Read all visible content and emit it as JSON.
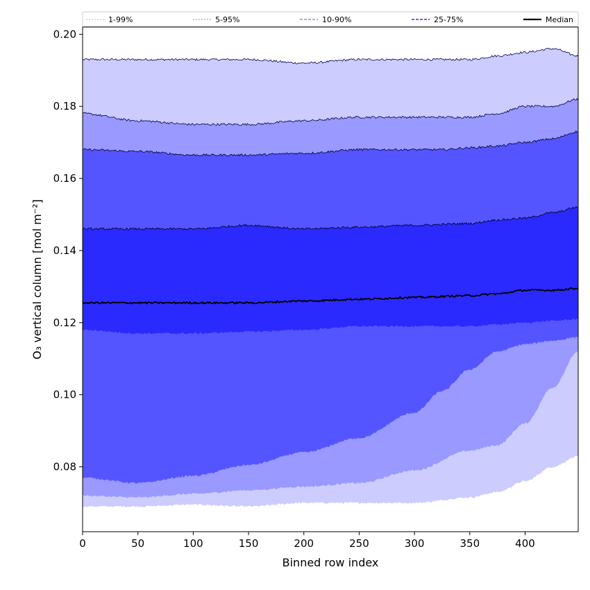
{
  "chart_data": {
    "type": "area",
    "xlabel": "Binned row index",
    "ylabel": "O₃ vertical column [mol m⁻²]",
    "xlim": [
      0,
      448
    ],
    "ylim": [
      0.062,
      0.202
    ],
    "x_ticks": [
      0,
      50,
      100,
      150,
      200,
      250,
      300,
      350,
      400
    ],
    "y_ticks": [
      0.08,
      0.1,
      0.12,
      0.14,
      0.16,
      0.18,
      0.2
    ],
    "legend_position": "top",
    "bands": [
      {
        "name": "1-99%",
        "color": "#ccccff",
        "edge": "#000055",
        "x": [
          0,
          50,
          100,
          150,
          200,
          250,
          300,
          350,
          375,
          400,
          425,
          448
        ],
        "upper": [
          0.193,
          0.193,
          0.193,
          0.193,
          0.192,
          0.193,
          0.193,
          0.193,
          0.194,
          0.195,
          0.196,
          0.194
        ],
        "lower": [
          0.069,
          0.069,
          0.0695,
          0.069,
          0.07,
          0.07,
          0.07,
          0.0715,
          0.073,
          0.076,
          0.08,
          0.083
        ]
      },
      {
        "name": "5-95%",
        "color": "#9999ff",
        "edge": "#000044",
        "x": [
          0,
          50,
          100,
          150,
          200,
          250,
          300,
          350,
          375,
          400,
          425,
          448
        ],
        "upper": [
          0.178,
          0.176,
          0.175,
          0.175,
          0.176,
          0.177,
          0.177,
          0.177,
          0.178,
          0.18,
          0.18,
          0.182
        ],
        "lower": [
          0.072,
          0.0715,
          0.0725,
          0.0735,
          0.0745,
          0.0755,
          0.079,
          0.0845,
          0.086,
          0.092,
          0.102,
          0.112
        ]
      },
      {
        "name": "10-90%",
        "color": "#5555ff",
        "edge": "#000033",
        "x": [
          0,
          50,
          100,
          150,
          200,
          250,
          300,
          325,
          350,
          375,
          400,
          425,
          448
        ],
        "upper": [
          0.168,
          0.1675,
          0.1665,
          0.1665,
          0.167,
          0.168,
          0.168,
          0.168,
          0.1685,
          0.169,
          0.17,
          0.171,
          0.173
        ],
        "lower": [
          0.077,
          0.0755,
          0.0775,
          0.0805,
          0.084,
          0.088,
          0.095,
          0.101,
          0.107,
          0.112,
          0.114,
          0.115,
          0.116
        ]
      },
      {
        "name": "25-75%",
        "color": "#2a2aff",
        "edge": "#000022",
        "x": [
          0,
          50,
          100,
          150,
          200,
          250,
          300,
          350,
          375,
          400,
          425,
          448
        ],
        "upper": [
          0.146,
          0.146,
          0.146,
          0.147,
          0.146,
          0.1465,
          0.147,
          0.1475,
          0.1485,
          0.149,
          0.1505,
          0.152
        ],
        "lower": [
          0.118,
          0.117,
          0.117,
          0.1175,
          0.118,
          0.119,
          0.119,
          0.119,
          0.1195,
          0.12,
          0.1205,
          0.121
        ]
      }
    ],
    "series": [
      {
        "name": "Median",
        "color": "#000000",
        "x": [
          0,
          50,
          100,
          150,
          200,
          250,
          300,
          350,
          375,
          400,
          425,
          448
        ],
        "values": [
          0.1255,
          0.1255,
          0.1255,
          0.1255,
          0.126,
          0.1265,
          0.127,
          0.1275,
          0.128,
          0.129,
          0.129,
          0.1295
        ]
      }
    ],
    "legend": [
      {
        "label": "1-99%",
        "color": "#bbbbbb",
        "dash": "2,2",
        "width": 1
      },
      {
        "label": "5-95%",
        "color": "#8888cc",
        "dash": "2,2",
        "width": 1
      },
      {
        "label": "10-90%",
        "color": "#7777ee",
        "dash": "4,2",
        "width": 1.2
      },
      {
        "label": "25-75%",
        "color": "#3333ee",
        "dash": "4,2",
        "width": 1.4
      },
      {
        "label": "Median",
        "color": "#000000",
        "dash": "",
        "width": 2.2
      }
    ]
  }
}
